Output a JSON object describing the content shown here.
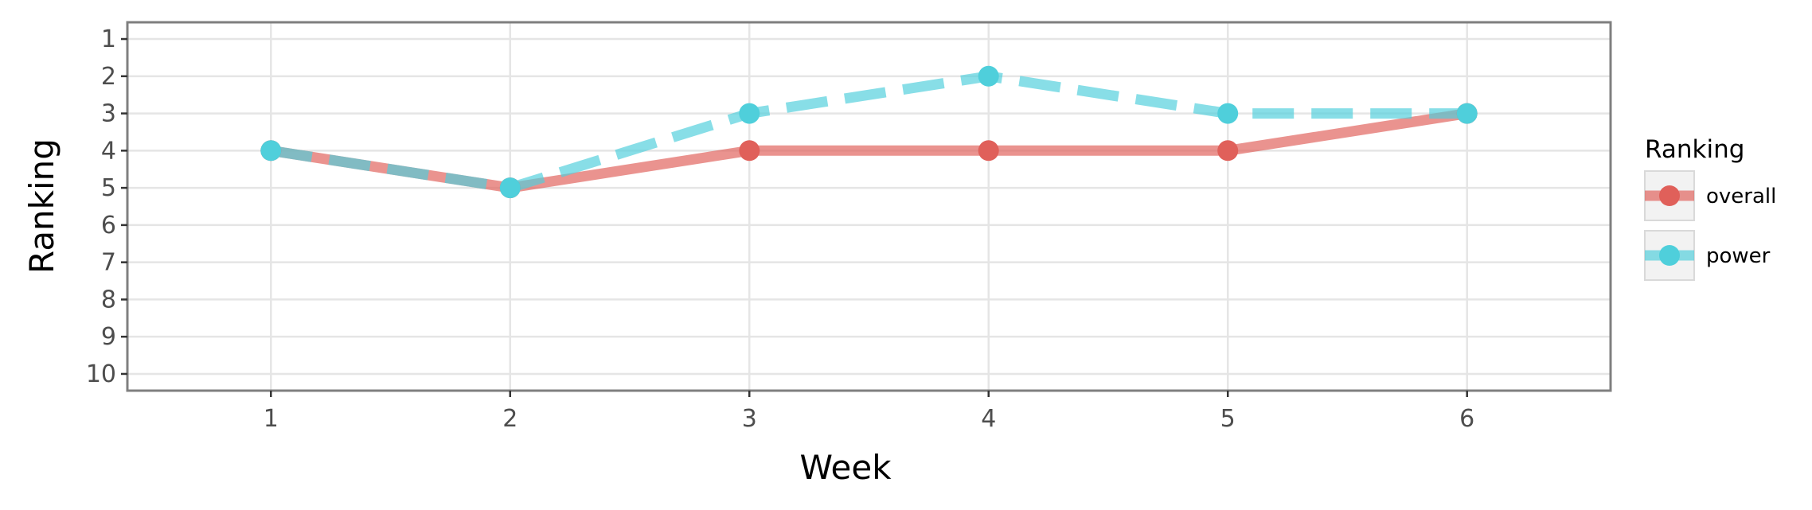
{
  "chart_data": {
    "type": "line",
    "xlabel": "Week",
    "ylabel": "Ranking",
    "x": [
      1,
      2,
      3,
      4,
      5,
      6
    ],
    "xlim": [
      0.4,
      6.6
    ],
    "ylim": [
      10.45,
      0.55
    ],
    "y_reversed": true,
    "x_ticks": [
      1,
      2,
      3,
      4,
      5,
      6
    ],
    "y_ticks": [
      1,
      2,
      3,
      4,
      5,
      6,
      7,
      8,
      9,
      10
    ],
    "grid": true,
    "legend": {
      "title": "Ranking",
      "placement": "right"
    },
    "series": [
      {
        "name": "overall",
        "values": [
          4,
          5,
          4,
          4,
          4,
          3
        ],
        "color": "#E0605A",
        "line_style": "solid"
      },
      {
        "name": "power",
        "values": [
          4,
          5,
          3,
          2,
          3,
          3
        ],
        "color": "#4FCFDB",
        "line_style": "dashed"
      }
    ]
  }
}
